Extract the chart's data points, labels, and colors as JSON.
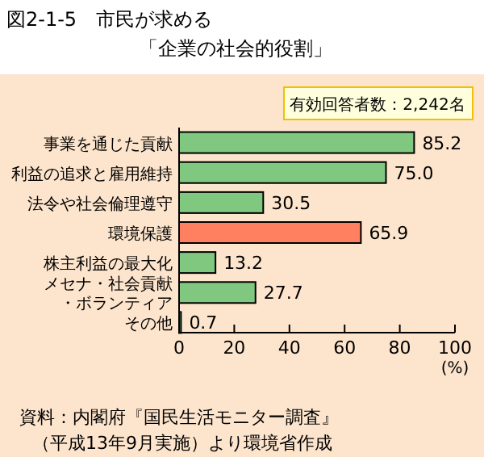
{
  "chart_data": {
    "type": "bar",
    "orientation": "horizontal",
    "title": "図2-1-5　市民が求める",
    "subtitle": "「企業の社会的役割」",
    "categories": [
      "事業を通じた貢献",
      "利益の追求と雇用維持",
      "法令や社会倫理遵守",
      "環境保護",
      "株主利益の最大化",
      "メセナ・社会貢献・ボランティア",
      "その他"
    ],
    "values": [
      85.2,
      75.0,
      30.5,
      65.9,
      13.2,
      27.7,
      0.7
    ],
    "colors": [
      "#80c880",
      "#80c880",
      "#80c880",
      "#ff8060",
      "#80c880",
      "#80c880",
      "#80c880"
    ],
    "value_labels": [
      "85.2",
      "75.0",
      "30.5",
      "65.9",
      "13.2",
      "27.7",
      "0.7"
    ],
    "xlim": [
      0,
      100
    ],
    "xticks": [
      0,
      20,
      40,
      60,
      80,
      100
    ],
    "xlabel": "(%)",
    "grid": false,
    "annotations": [
      "有効回答者数：2,242名",
      "資料：内閣府『国民生活モニター調査』",
      "（平成13年9月実施）より環境省作成"
    ]
  }
}
